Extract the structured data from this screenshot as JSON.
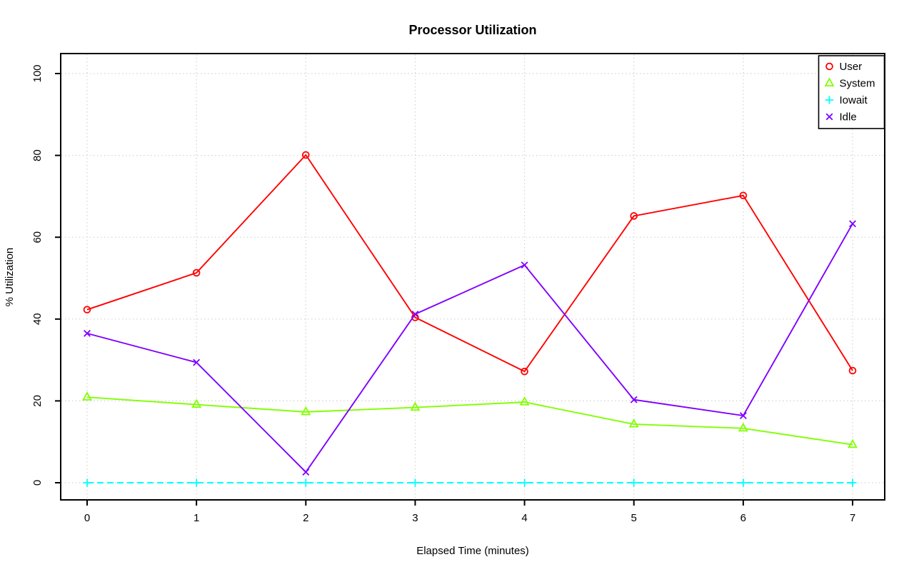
{
  "chart_data": {
    "type": "line",
    "title": "Processor Utilization",
    "xlabel": "Elapsed Time (minutes)",
    "ylabel": "% Utilization",
    "x": [
      0,
      1,
      2,
      3,
      4,
      5,
      6,
      7
    ],
    "xticks": [
      "0",
      "1",
      "2",
      "3",
      "4",
      "5",
      "6",
      "7"
    ],
    "yticks": [
      "0",
      "20",
      "40",
      "60",
      "80",
      "100"
    ],
    "ytick_values": [
      0,
      20,
      40,
      60,
      80,
      100
    ],
    "xlim": [
      0,
      7
    ],
    "ylim": [
      0,
      100
    ],
    "grid": true,
    "grid_style": "dotted",
    "grid_color": "#D3D3D3",
    "axis_color": "#000000",
    "background_color": "#FFFFFF",
    "legend_position": "top-right",
    "series": [
      {
        "name": "User",
        "marker": "circle",
        "line_style": "solid",
        "color": "#FF0000",
        "values": [
          42.3,
          51.3,
          80.1,
          40.4,
          27.2,
          65.2,
          70.2,
          27.4
        ]
      },
      {
        "name": "System",
        "marker": "triangle",
        "line_style": "solid",
        "color": "#80FF00",
        "values": [
          20.9,
          19.1,
          17.3,
          18.4,
          19.7,
          14.3,
          13.3,
          9.3
        ]
      },
      {
        "name": "Iowait",
        "marker": "plus",
        "line_style": "dashed",
        "color": "#00FFFF",
        "values": [
          0,
          0,
          0,
          0,
          0,
          0,
          0,
          0
        ]
      },
      {
        "name": "Idle",
        "marker": "x",
        "line_style": "solid",
        "color": "#8000FF",
        "values": [
          36.5,
          29.4,
          2.6,
          41.2,
          53.2,
          20.3,
          16.4,
          63.3
        ]
      }
    ]
  }
}
